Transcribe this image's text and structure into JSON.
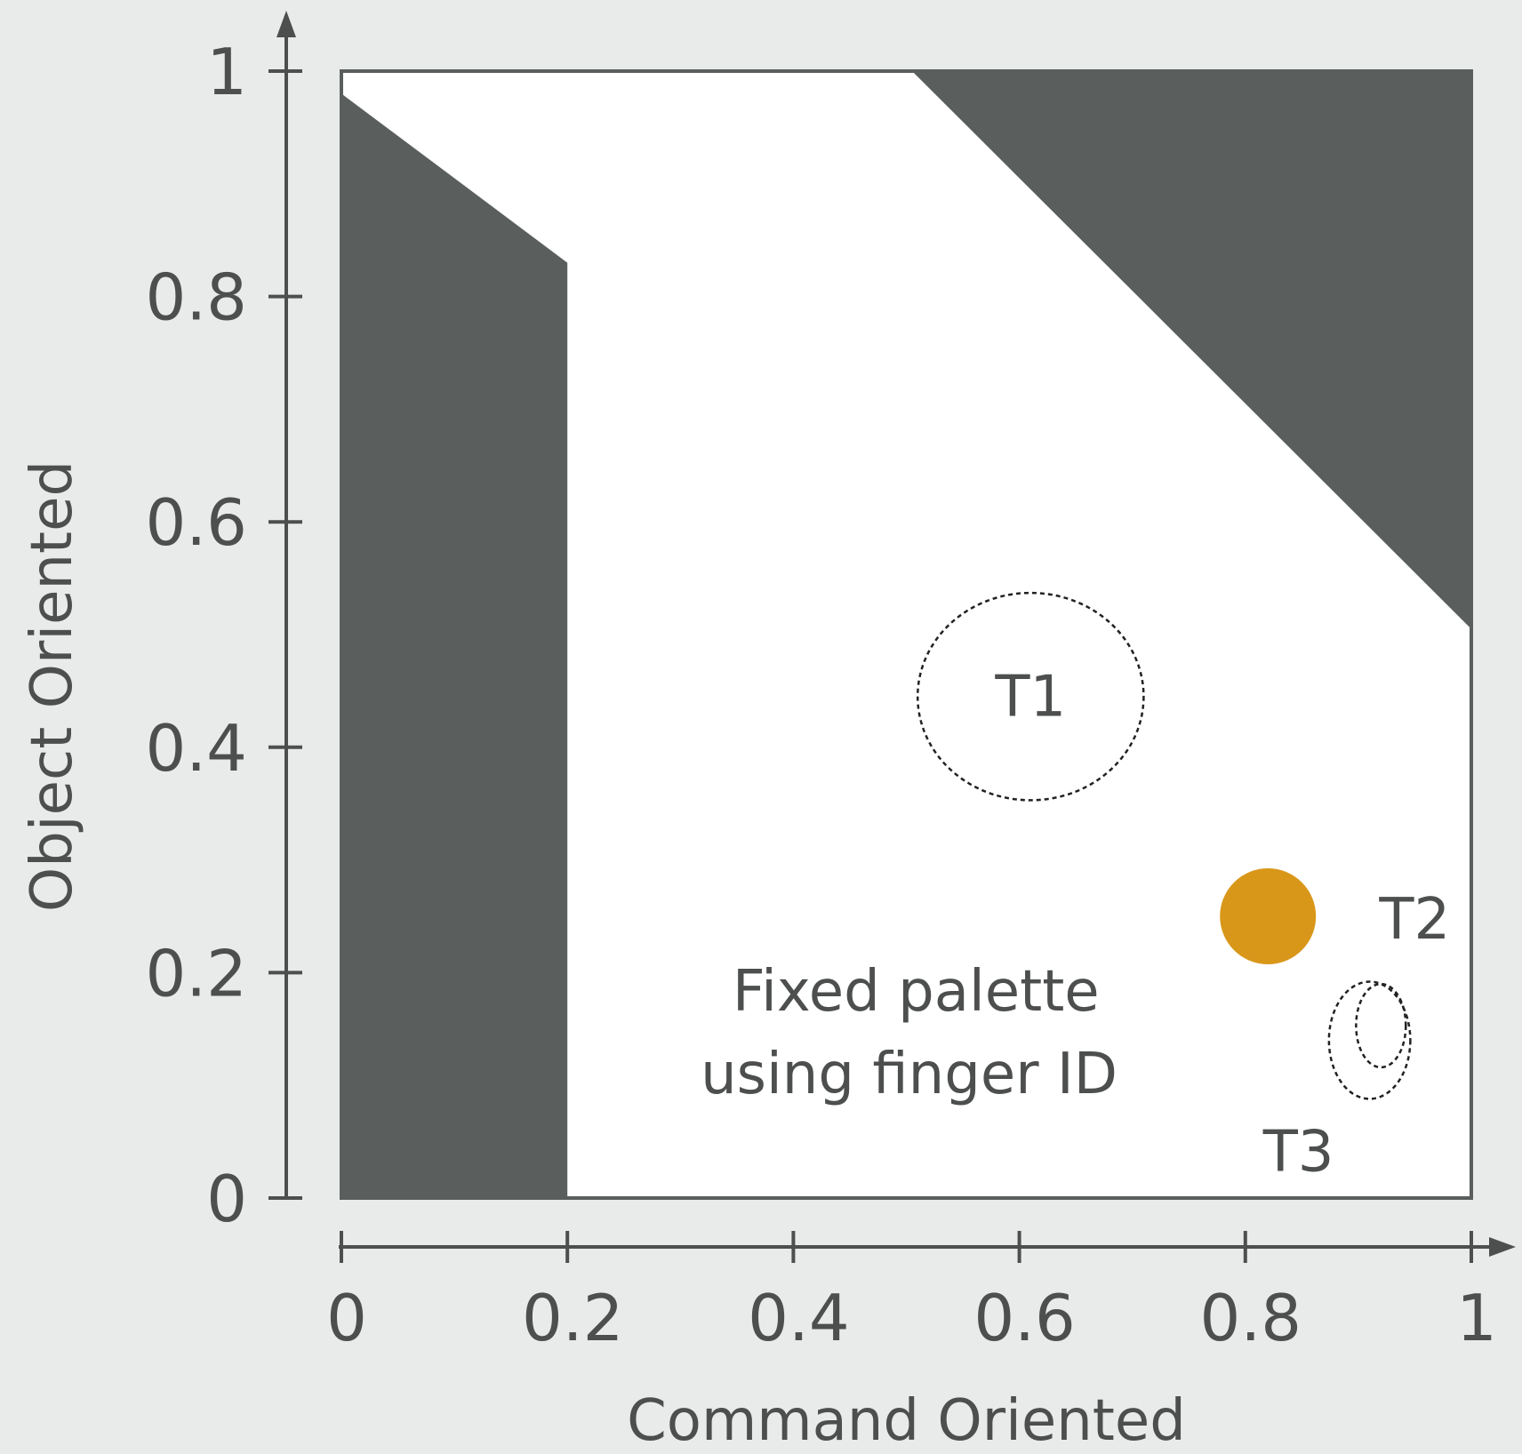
{
  "colors": {
    "background": "#e9ebeb",
    "plot_background": "#ffffff",
    "shaded_region": "#5a5e5d",
    "axis": "#4d4f4f",
    "marker": "#d9971a",
    "dashed_outline": "#222222"
  },
  "chart_data": {
    "type": "scatter",
    "title": "",
    "xlabel": "Command Oriented",
    "ylabel": "Object Oriented",
    "xlim": [
      0,
      1
    ],
    "ylim": [
      0,
      1
    ],
    "x_ticks": [
      0,
      0.2,
      0.4,
      0.6,
      0.8,
      1
    ],
    "x_tick_labels": [
      "0",
      "0.2",
      "0.4",
      "0.6",
      "0.8",
      "1"
    ],
    "y_ticks": [
      0,
      0.2,
      0.4,
      0.6,
      0.8,
      1
    ],
    "y_tick_labels": [
      "0",
      "0.2",
      "0.4",
      "0.6",
      "0.8",
      "1"
    ],
    "grid": false,
    "shaded_regions": [
      {
        "name": "left-excluded-region",
        "polygon": [
          [
            0,
            0
          ],
          [
            0.2,
            0
          ],
          [
            0.2,
            0.83
          ],
          [
            0,
            0.98
          ]
        ]
      },
      {
        "name": "top-right-excluded-region",
        "polygon": [
          [
            0.505,
            1
          ],
          [
            1,
            1
          ],
          [
            1,
            0.505
          ]
        ]
      }
    ],
    "points": [
      {
        "name": "fixed-palette",
        "label": "Fixed palette using finger ID",
        "label_lines": [
          "Fixed palette",
          "using finger ID"
        ],
        "x": 0.82,
        "y": 0.25,
        "marker": "filled-circle"
      }
    ],
    "regions": [
      {
        "name": "T1",
        "label": "T1",
        "cx": 0.61,
        "cy": 0.445,
        "rx": 0.1,
        "ry": 0.092
      },
      {
        "name": "T2",
        "label": "T2",
        "cx": 0.92,
        "cy": 0.153,
        "rx": 0.022,
        "ry": 0.037
      },
      {
        "name": "T3",
        "label": "T3",
        "cx": 0.91,
        "cy": 0.14,
        "rx": 0.036,
        "ry": 0.052
      }
    ]
  }
}
